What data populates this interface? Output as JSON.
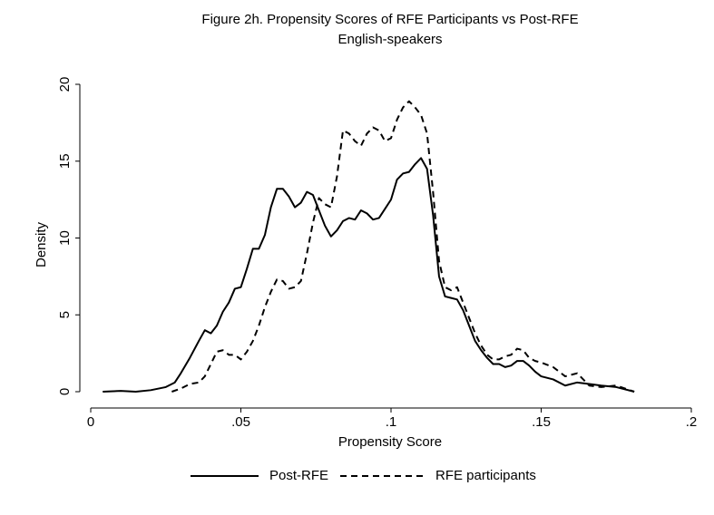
{
  "chart_data": {
    "type": "line",
    "title": [
      "Figure 2h. Propensity Scores of RFE Participants vs Post-RFE",
      "English-speakers"
    ],
    "x_label": "Propensity Score",
    "y_label": "Density",
    "xlim": [
      0,
      0.2
    ],
    "ylim": [
      0,
      20
    ],
    "xticks": [
      0,
      {
        "value": 0.05,
        "label": ".05"
      },
      {
        "value": 0.1,
        "label": ".1"
      },
      {
        "value": 0.15,
        "label": ".15"
      },
      {
        "value": 0.2,
        "label": ".2"
      }
    ],
    "yticks": [
      0,
      5,
      10,
      15,
      20
    ],
    "grid": false,
    "legend": "bottom",
    "series": [
      {
        "name": "Post-RFE",
        "color": "#000000",
        "style": "solid",
        "x": [
          0.004,
          0.01,
          0.015,
          0.02,
          0.025,
          0.028,
          0.03,
          0.033,
          0.036,
          0.038,
          0.04,
          0.042,
          0.044,
          0.046,
          0.048,
          0.05,
          0.052,
          0.054,
          0.056,
          0.058,
          0.06,
          0.062,
          0.064,
          0.066,
          0.068,
          0.07,
          0.072,
          0.074,
          0.076,
          0.078,
          0.08,
          0.082,
          0.084,
          0.086,
          0.088,
          0.09,
          0.092,
          0.094,
          0.096,
          0.098,
          0.1,
          0.102,
          0.104,
          0.106,
          0.108,
          0.11,
          0.112,
          0.114,
          0.116,
          0.118,
          0.12,
          0.122,
          0.124,
          0.126,
          0.128,
          0.13,
          0.132,
          0.134,
          0.136,
          0.138,
          0.14,
          0.142,
          0.144,
          0.146,
          0.148,
          0.15,
          0.154,
          0.158,
          0.162,
          0.166,
          0.17,
          0.175,
          0.181
        ],
        "values": [
          0,
          0.05,
          0,
          0.1,
          0.3,
          0.6,
          1.2,
          2.2,
          3.3,
          4.0,
          3.8,
          4.3,
          5.2,
          5.8,
          6.7,
          6.8,
          8.0,
          9.3,
          9.3,
          10.2,
          12.0,
          13.2,
          13.2,
          12.7,
          12.0,
          12.3,
          13.0,
          12.8,
          11.8,
          10.8,
          10.1,
          10.5,
          11.1,
          11.3,
          11.2,
          11.8,
          11.6,
          11.2,
          11.3,
          11.9,
          12.5,
          13.8,
          14.2,
          14.3,
          14.8,
          15.2,
          14.5,
          11.5,
          7.5,
          6.2,
          6.1,
          6.0,
          5.3,
          4.3,
          3.3,
          2.7,
          2.2,
          1.8,
          1.8,
          1.6,
          1.7,
          2.0,
          2.0,
          1.7,
          1.3,
          1.0,
          0.8,
          0.4,
          0.6,
          0.5,
          0.4,
          0.3,
          0
        ]
      },
      {
        "name": "RFE participants",
        "color": "#000000",
        "style": "dashed",
        "x": [
          0.027,
          0.03,
          0.033,
          0.036,
          0.038,
          0.04,
          0.042,
          0.044,
          0.046,
          0.048,
          0.05,
          0.052,
          0.054,
          0.056,
          0.058,
          0.06,
          0.062,
          0.064,
          0.066,
          0.068,
          0.07,
          0.072,
          0.074,
          0.076,
          0.078,
          0.08,
          0.082,
          0.084,
          0.086,
          0.088,
          0.09,
          0.092,
          0.094,
          0.096,
          0.098,
          0.1,
          0.102,
          0.104,
          0.106,
          0.108,
          0.11,
          0.112,
          0.114,
          0.116,
          0.118,
          0.12,
          0.122,
          0.124,
          0.126,
          0.128,
          0.13,
          0.132,
          0.134,
          0.136,
          0.138,
          0.14,
          0.142,
          0.144,
          0.146,
          0.148,
          0.15,
          0.154,
          0.158,
          0.162,
          0.166,
          0.17,
          0.175,
          0.181
        ],
        "values": [
          0,
          0.2,
          0.5,
          0.6,
          1.0,
          1.8,
          2.6,
          2.7,
          2.4,
          2.4,
          2.1,
          2.6,
          3.3,
          4.3,
          5.5,
          6.5,
          7.3,
          7.2,
          6.7,
          6.8,
          7.2,
          9.0,
          11.0,
          12.6,
          12.2,
          12.0,
          14.0,
          17.0,
          16.8,
          16.3,
          16.0,
          16.8,
          17.2,
          17.0,
          16.3,
          16.5,
          17.7,
          18.5,
          18.9,
          18.5,
          18.0,
          16.8,
          13.0,
          8.5,
          6.8,
          6.6,
          6.8,
          5.8,
          4.8,
          3.8,
          3.0,
          2.4,
          2.1,
          2.1,
          2.3,
          2.4,
          2.8,
          2.7,
          2.2,
          2.0,
          1.9,
          1.6,
          1.0,
          1.2,
          0.4,
          0.3,
          0.4,
          0
        ]
      }
    ]
  }
}
